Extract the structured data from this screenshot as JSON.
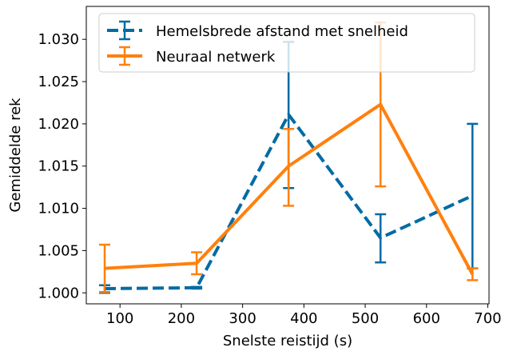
{
  "chart_data": {
    "type": "line",
    "title": "",
    "xlabel": "Snelste reistijd (s)",
    "ylabel": "Gemiddelde rek",
    "xlim": [
      45,
      702
    ],
    "ylim": [
      0.9987,
      1.0339
    ],
    "xticks": [
      100,
      200,
      300,
      400,
      500,
      600,
      700
    ],
    "yticks": [
      1.0,
      1.005,
      1.01,
      1.015,
      1.02,
      1.025,
      1.03
    ],
    "grid": false,
    "legend_position": "top-left",
    "x": [
      75,
      225,
      375,
      525,
      675
    ],
    "series": [
      {
        "name": "Hemelsbrede afstand met snelheid",
        "color": "#006ba4",
        "linestyle": "dashed",
        "values": [
          1.0005,
          1.0006,
          1.0211,
          1.0065,
          1.0115
        ],
        "err_low": [
          1.0,
          1.0005,
          1.0124,
          1.0036,
          1.0029
        ],
        "err_high": [
          1.0009,
          1.0007,
          1.0297,
          1.0093,
          1.02
        ]
      },
      {
        "name": "Neuraal netwerk",
        "color": "#ff800e",
        "linestyle": "solid",
        "values": [
          1.0029,
          1.0035,
          1.015,
          1.0223,
          1.0022
        ],
        "err_low": [
          1.0001,
          1.0022,
          1.0103,
          1.0126,
          1.0015
        ],
        "err_high": [
          1.0057,
          1.0048,
          1.0194,
          1.032,
          1.0029
        ]
      }
    ]
  }
}
